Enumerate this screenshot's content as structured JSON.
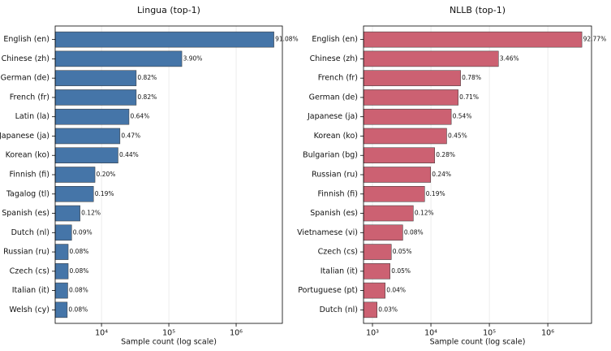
{
  "chart_data": [
    {
      "type": "barh",
      "title": "Lingua (top-1)",
      "x_label": "Sample count (log scale)",
      "log_x": true,
      "grid": true,
      "color": "#4575a8",
      "categories": [
        "English (en)",
        "Chinese (zh)",
        "German (de)",
        "French (fr)",
        "Latin (la)",
        "Japanese (ja)",
        "Korean (ko)",
        "Finnish (fi)",
        "Tagalog (tl)",
        "Spanish (es)",
        "Dutch (nl)",
        "Russian (ru)",
        "Czech (cs)",
        "Italian (it)",
        "Welsh (cy)"
      ],
      "values": [
        3640000,
        156000,
        32800,
        32800,
        25600,
        18800,
        17600,
        8000,
        7600,
        4800,
        3600,
        3200,
        3200,
        3150,
        3100
      ],
      "percent_labels": [
        "91.08%",
        "3.90%",
        "0.82%",
        "0.82%",
        "0.64%",
        "0.47%",
        "0.44%",
        "0.20%",
        "0.19%",
        "0.12%",
        "0.09%",
        "0.08%",
        "0.08%",
        "0.08%",
        "0.08%"
      ],
      "xlim": [
        2050,
        4860000
      ],
      "xticks": [
        {
          "value": 10000,
          "label": "10⁴"
        },
        {
          "value": 100000,
          "label": "10⁵"
        },
        {
          "value": 1000000,
          "label": "10⁶"
        }
      ]
    },
    {
      "type": "barh",
      "title": "NLLB (top-1)",
      "x_label": "Sample count (log scale)",
      "log_x": true,
      "grid": true,
      "color": "#cc6172",
      "categories": [
        "English (en)",
        "Chinese (zh)",
        "French (fr)",
        "German (de)",
        "Japanese (ja)",
        "Korean (ko)",
        "Bulgarian (bg)",
        "Russian (ru)",
        "Finnish (fi)",
        "Spanish (es)",
        "Vietnamese (vi)",
        "Czech (cs)",
        "Italian (it)",
        "Portuguese (pt)",
        "Dutch (nl)"
      ],
      "values": [
        3830000,
        143000,
        32200,
        29300,
        22300,
        18600,
        11600,
        9900,
        7800,
        5000,
        3300,
        2100,
        2000,
        1650,
        1200
      ],
      "percent_labels": [
        "92.77%",
        "3.46%",
        "0.78%",
        "0.71%",
        "0.54%",
        "0.45%",
        "0.28%",
        "0.24%",
        "0.19%",
        "0.12%",
        "0.08%",
        "0.05%",
        "0.05%",
        "0.04%",
        "0.03%"
      ],
      "xlim": [
        703,
        5600000
      ],
      "xticks": [
        {
          "value": 1000,
          "label": "10³"
        },
        {
          "value": 10000,
          "label": "10⁴"
        },
        {
          "value": 100000,
          "label": "10⁵"
        },
        {
          "value": 1000000,
          "label": "10⁶"
        }
      ]
    }
  ]
}
